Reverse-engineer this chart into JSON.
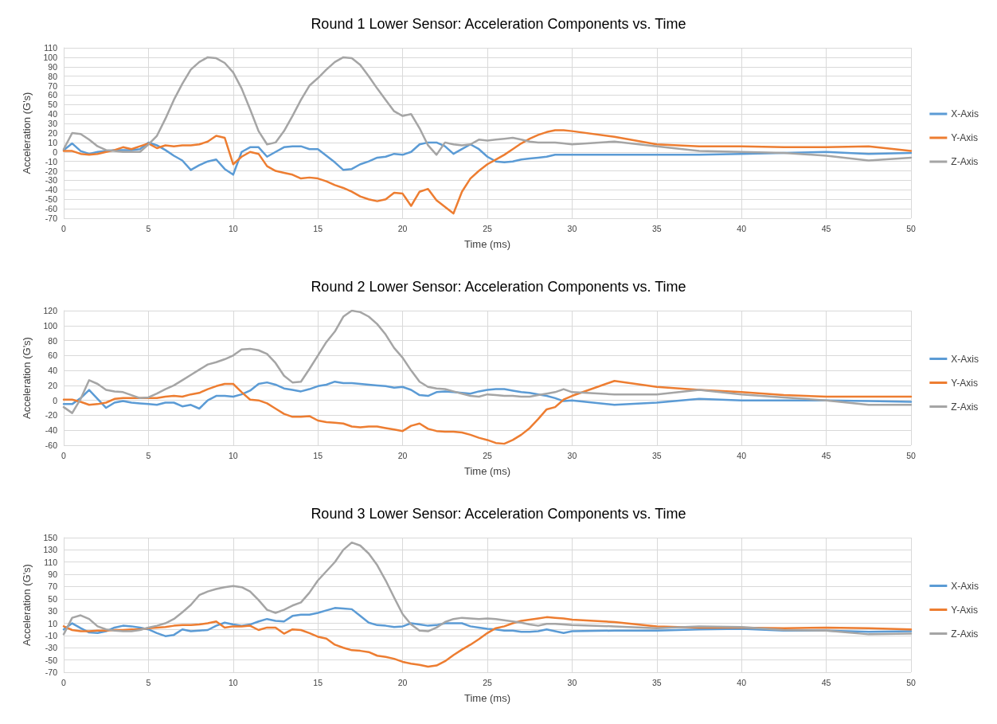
{
  "chart_data": [
    {
      "type": "line",
      "title": "Round 1 Lower Sensor: Acceleration Components vs. Time",
      "xlabel": "Time (ms)",
      "ylabel": "Acceleration (G's)",
      "x": [
        0,
        0.5,
        1,
        1.5,
        2,
        2.5,
        3,
        3.5,
        4,
        4.5,
        5,
        5.5,
        6,
        6.5,
        7,
        7.5,
        8,
        8.5,
        9,
        9.5,
        10,
        10.5,
        11,
        11.5,
        12,
        12.5,
        13,
        13.5,
        14,
        14.5,
        15,
        15.5,
        16,
        16.5,
        17,
        17.5,
        18,
        18.5,
        19,
        19.5,
        20,
        20.5,
        21,
        21.5,
        22,
        22.5,
        23,
        23.5,
        24,
        24.5,
        25,
        25.5,
        26,
        26.5,
        27,
        27.5,
        28,
        28.5,
        29,
        29.5,
        30,
        32.5,
        35,
        37.5,
        40,
        42.5,
        45,
        47.5,
        50
      ],
      "series": [
        {
          "name": "X-Axis",
          "color": "#5b9bd5",
          "values": [
            2,
            9,
            1,
            -2,
            0,
            1,
            2,
            2,
            2,
            3,
            10,
            7,
            2,
            -4,
            -9,
            -19,
            -14,
            -10,
            -8,
            -18,
            -24,
            0,
            5,
            5,
            -5,
            0,
            5,
            6,
            6,
            3,
            3,
            -4,
            -11,
            -19,
            -18,
            -13,
            -10,
            -6,
            -5,
            -2,
            -3,
            0,
            8,
            10,
            10,
            6,
            -2,
            3,
            8,
            3,
            -5,
            -10,
            -11,
            -10,
            -8,
            -7,
            -6,
            -5,
            -3,
            -3,
            -3,
            -3,
            -3,
            -3,
            -2,
            -1,
            0,
            -2,
            -1
          ]
        },
        {
          "name": "Y-Axis",
          "color": "#ed7d31",
          "values": [
            1,
            1,
            -2,
            -3,
            -2,
            0,
            2,
            5,
            3,
            6,
            9,
            4,
            7,
            6,
            7,
            7,
            8,
            11,
            17,
            15,
            -13,
            -5,
            0,
            -2,
            -15,
            -20,
            -22,
            -24,
            -28,
            -27,
            -28,
            -31,
            -35,
            -38,
            -42,
            -47,
            -50,
            -52,
            -50,
            -43,
            -44,
            -57,
            -42,
            -39,
            -51,
            -58,
            -65,
            -42,
            -28,
            -20,
            -13,
            -8,
            -3,
            3,
            9,
            14,
            18,
            21,
            23,
            23,
            22,
            16,
            8,
            6,
            6,
            5,
            5,
            6,
            1
          ]
        },
        {
          "name": "Z-Axis",
          "color": "#a5a5a5",
          "values": [
            3,
            20,
            19,
            13,
            6,
            2,
            1,
            0,
            0,
            0,
            8,
            17,
            35,
            55,
            72,
            87,
            95,
            100,
            99,
            94,
            84,
            67,
            45,
            22,
            8,
            10,
            22,
            38,
            55,
            70,
            78,
            87,
            95,
            100,
            99,
            92,
            80,
            67,
            55,
            43,
            38,
            40,
            25,
            7,
            -3,
            10,
            8,
            7,
            8,
            13,
            12,
            13,
            14,
            15,
            13,
            11,
            10,
            10,
            10,
            9,
            8,
            11,
            6,
            1,
            0,
            -1,
            -4,
            -9,
            -6
          ]
        }
      ],
      "xlim": [
        0,
        50
      ],
      "xticks": [
        0,
        5,
        10,
        15,
        20,
        25,
        30,
        35,
        40,
        45,
        50
      ],
      "ylim": [
        -70,
        110
      ],
      "yticks": [
        -70,
        -60,
        -50,
        -40,
        -30,
        -20,
        -10,
        0,
        10,
        20,
        30,
        40,
        50,
        60,
        70,
        80,
        90,
        100,
        110
      ],
      "grid": true,
      "legend": "right"
    },
    {
      "type": "line",
      "title": "Round 2 Lower Sensor: Acceleration Components vs. Time",
      "xlabel": "Time (ms)",
      "ylabel": "Acceleration (G's)",
      "x": [
        0,
        0.5,
        1,
        1.5,
        2,
        2.5,
        3,
        3.5,
        4,
        4.5,
        5,
        5.5,
        6,
        6.5,
        7,
        7.5,
        8,
        8.5,
        9,
        9.5,
        10,
        10.5,
        11,
        11.5,
        12,
        12.5,
        13,
        13.5,
        14,
        14.5,
        15,
        15.5,
        16,
        16.5,
        17,
        17.5,
        18,
        18.5,
        19,
        19.5,
        20,
        20.5,
        21,
        21.5,
        22,
        22.5,
        23,
        23.5,
        24,
        24.5,
        25,
        25.5,
        26,
        26.5,
        27,
        27.5,
        28,
        28.5,
        29,
        29.5,
        30,
        32.5,
        35,
        37.5,
        40,
        42.5,
        45,
        47.5,
        50
      ],
      "series": [
        {
          "name": "X-Axis",
          "color": "#5b9bd5",
          "values": [
            -5,
            -5,
            3,
            14,
            2,
            -10,
            -3,
            -1,
            -3,
            -4,
            -5,
            -6,
            -3,
            -3,
            -8,
            -6,
            -11,
            0,
            6,
            6,
            5,
            8,
            13,
            22,
            24,
            21,
            16,
            14,
            12,
            15,
            19,
            21,
            25,
            23,
            23,
            22,
            21,
            20,
            19,
            17,
            18,
            14,
            7,
            6,
            11,
            12,
            11,
            10,
            9,
            12,
            14,
            15,
            15,
            13,
            11,
            10,
            8,
            6,
            3,
            -1,
            0,
            -6,
            -3,
            2,
            0,
            0,
            0,
            -1,
            -2
          ]
        },
        {
          "name": "Y-Axis",
          "color": "#ed7d31",
          "values": [
            1,
            1,
            -2,
            -6,
            -5,
            -3,
            2,
            3,
            3,
            3,
            3,
            3,
            5,
            6,
            5,
            8,
            10,
            15,
            19,
            22,
            22,
            11,
            1,
            0,
            -4,
            -11,
            -18,
            -22,
            -22,
            -21,
            -27,
            -29,
            -30,
            -31,
            -35,
            -36,
            -35,
            -35,
            -37,
            -39,
            -41,
            -34,
            -31,
            -38,
            -41,
            -42,
            -42,
            -43,
            -46,
            -50,
            -53,
            -57,
            -58,
            -53,
            -46,
            -37,
            -25,
            -12,
            -9,
            1,
            6,
            26,
            18,
            14,
            11,
            7,
            5,
            5,
            5
          ]
        },
        {
          "name": "Z-Axis",
          "color": "#a5a5a5",
          "values": [
            -9,
            -17,
            2,
            27,
            22,
            14,
            12,
            11,
            7,
            3,
            4,
            9,
            15,
            20,
            27,
            34,
            41,
            48,
            51,
            55,
            60,
            68,
            69,
            67,
            62,
            50,
            33,
            24,
            25,
            42,
            60,
            78,
            92,
            112,
            120,
            118,
            112,
            102,
            88,
            70,
            57,
            40,
            25,
            18,
            16,
            15,
            12,
            9,
            6,
            5,
            8,
            7,
            6,
            6,
            5,
            5,
            7,
            9,
            11,
            15,
            11,
            8,
            8,
            14,
            8,
            4,
            0,
            -6,
            -6
          ]
        }
      ],
      "xlim": [
        0,
        50
      ],
      "xticks": [
        0,
        5,
        10,
        15,
        20,
        25,
        30,
        35,
        40,
        45,
        50
      ],
      "ylim": [
        -60,
        120
      ],
      "yticks": [
        -60,
        -40,
        -20,
        0,
        20,
        40,
        60,
        80,
        100,
        120
      ],
      "grid": true,
      "legend": "right"
    },
    {
      "type": "line",
      "title": "Round 3 Lower Sensor: Acceleration Components vs. Time",
      "xlabel": "Time (ms)",
      "ylabel": "Acceleration (G's)",
      "x": [
        0,
        0.5,
        1,
        1.5,
        2,
        2.5,
        3,
        3.5,
        4,
        4.5,
        5,
        5.5,
        6,
        6.5,
        7,
        7.5,
        8,
        8.5,
        9,
        9.5,
        10,
        10.5,
        11,
        11.5,
        12,
        12.5,
        13,
        13.5,
        14,
        14.5,
        15,
        15.5,
        16,
        16.5,
        17,
        17.5,
        18,
        18.5,
        19,
        19.5,
        20,
        20.5,
        21,
        21.5,
        22,
        22.5,
        23,
        23.5,
        24,
        24.5,
        25,
        25.5,
        26,
        26.5,
        27,
        27.5,
        28,
        28.5,
        29,
        29.5,
        30,
        32.5,
        35,
        37.5,
        40,
        42.5,
        45,
        47.5,
        50
      ],
      "series": [
        {
          "name": "X-Axis",
          "color": "#5b9bd5",
          "values": [
            0,
            10,
            2,
            -5,
            -6,
            -3,
            3,
            6,
            5,
            3,
            0,
            -6,
            -11,
            -9,
            0,
            -3,
            -2,
            -1,
            6,
            11,
            8,
            6,
            8,
            13,
            17,
            14,
            13,
            22,
            24,
            24,
            27,
            31,
            35,
            34,
            33,
            22,
            11,
            7,
            6,
            4,
            5,
            10,
            8,
            6,
            7,
            10,
            10,
            10,
            5,
            3,
            1,
            0,
            -2,
            -2,
            -4,
            -4,
            -3,
            0,
            -3,
            -6,
            -3,
            -2,
            -2,
            0,
            1,
            -2,
            -2,
            -4,
            -3
          ]
        },
        {
          "name": "Y-Axis",
          "color": "#ed7d31",
          "values": [
            5,
            -1,
            -3,
            -3,
            -2,
            -2,
            -1,
            -1,
            0,
            0,
            2,
            3,
            4,
            6,
            7,
            7,
            8,
            10,
            13,
            3,
            5,
            5,
            6,
            -1,
            3,
            3,
            -7,
            0,
            -1,
            -6,
            -12,
            -15,
            -25,
            -30,
            -34,
            -35,
            -37,
            -43,
            -45,
            -48,
            -53,
            -56,
            -58,
            -61,
            -59,
            -52,
            -42,
            -33,
            -25,
            -16,
            -6,
            2,
            5,
            10,
            14,
            16,
            18,
            20,
            19,
            18,
            16,
            12,
            5,
            3,
            3,
            2,
            3,
            2,
            0
          ]
        },
        {
          "name": "Z-Axis",
          "color": "#a5a5a5",
          "values": [
            -8,
            19,
            23,
            17,
            5,
            0,
            -2,
            -3,
            -3,
            -1,
            3,
            6,
            10,
            17,
            28,
            40,
            56,
            62,
            66,
            69,
            71,
            69,
            62,
            48,
            32,
            27,
            32,
            39,
            44,
            60,
            80,
            95,
            110,
            130,
            142,
            137,
            124,
            105,
            80,
            52,
            25,
            8,
            -2,
            -3,
            3,
            12,
            17,
            19,
            18,
            17,
            18,
            17,
            15,
            13,
            11,
            8,
            6,
            9,
            9,
            8,
            7,
            5,
            2,
            5,
            4,
            -1,
            -2,
            -8,
            -7
          ]
        }
      ],
      "xlim": [
        0,
        50
      ],
      "xticks": [
        0,
        5,
        10,
        15,
        20,
        25,
        30,
        35,
        40,
        45,
        50
      ],
      "ylim": [
        -70,
        150
      ],
      "yticks": [
        -70,
        -50,
        -30,
        -10,
        10,
        30,
        50,
        70,
        90,
        110,
        130,
        150
      ],
      "grid": true,
      "legend": "right"
    }
  ]
}
